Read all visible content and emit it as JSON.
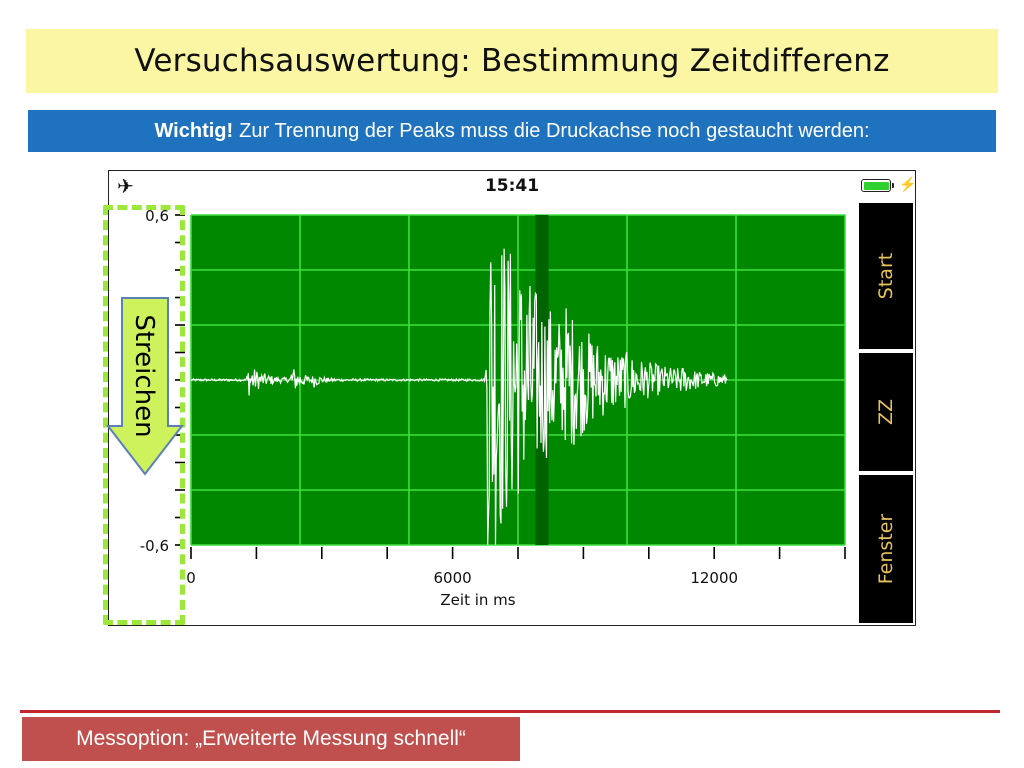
{
  "slide": {
    "title": "Versuchsauswertung: Bestimmung Zeitdifferenz",
    "notice_bold": "Wichtig!",
    "notice_text": "Zur Trennung der Peaks muss die Druckachse noch gestaucht werden:",
    "footer": "Messoption: „Erweiterte Messung schnell“"
  },
  "phone": {
    "status_bar": {
      "airplane_icon": "airplane-icon",
      "time": "15:41",
      "battery_icon": "battery-icon",
      "charging_icon": "bolt-icon",
      "battery_color": "#2fd12f"
    },
    "buttons": {
      "start": "Start",
      "zz": "ZZ",
      "fenster": "Fenster",
      "text_color": "#e6c25a"
    },
    "overlay": {
      "gesture_label": "Streichen",
      "arrow_color": "#cdf25c",
      "frame_color": "#9be83a"
    }
  },
  "chart_data": {
    "type": "line",
    "xlabel": "Zeit in ms",
    "ylabel": "",
    "xlim": [
      0,
      15000
    ],
    "ylim": [
      -0.6,
      0.6
    ],
    "x_ticks": [
      0,
      6000,
      12000
    ],
    "y_ticks": [
      0.6,
      -0.6
    ],
    "x_tick_labels": [
      "0",
      "6000",
      "12000"
    ],
    "y_tick_labels": [
      "0,6",
      "-0,6"
    ],
    "grid": true,
    "background": "#008800",
    "series": [
      {
        "color": "#ffffff",
        "bursts": [
          {
            "t": 1300,
            "amp": 0.06,
            "decay": 350
          },
          {
            "t": 2300,
            "amp": 0.05,
            "decay": 250
          },
          {
            "t": 2800,
            "amp": 0.02,
            "decay": 150
          },
          {
            "t": 6800,
            "amp": 0.7,
            "decay": 1500
          },
          {
            "t": 8600,
            "amp": 0.07,
            "decay": 500
          },
          {
            "t": 9900,
            "amp": 0.015,
            "decay": 250
          },
          {
            "t": 11200,
            "amp": 0.015,
            "decay": 200
          }
        ],
        "end_ms": 12300
      }
    ]
  }
}
